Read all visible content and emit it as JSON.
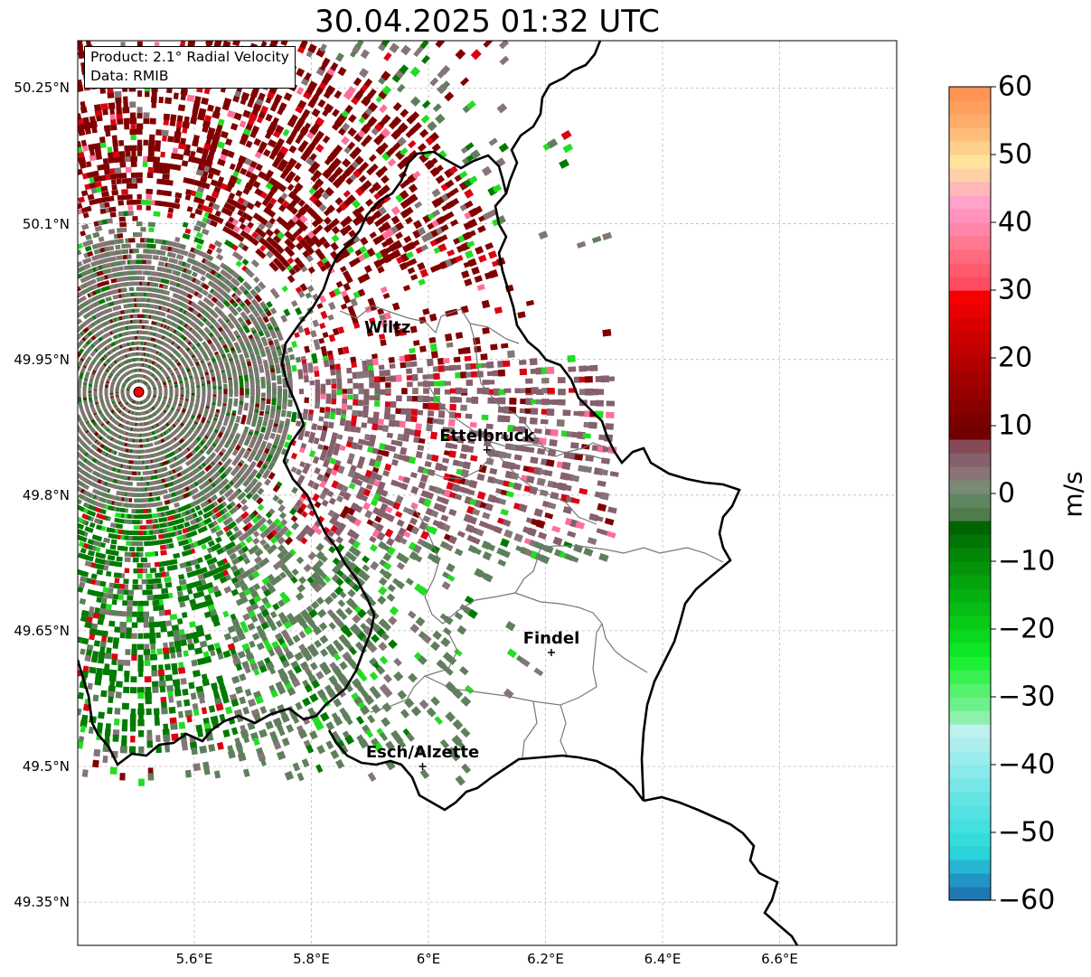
{
  "title": "30.04.2025 01:32 UTC",
  "info_box": {
    "product": "Product: 2.1° Radial Velocity",
    "data": "Data: RMIB"
  },
  "lat_labels": [
    {
      "value": 50.25,
      "text": "50.25°N"
    },
    {
      "value": 50.1,
      "text": "50.1°N"
    },
    {
      "value": 49.95,
      "text": "49.95°N"
    },
    {
      "value": 49.8,
      "text": "49.8°N"
    },
    {
      "value": 49.65,
      "text": "49.65°N"
    },
    {
      "value": 49.5,
      "text": "49.5°N"
    },
    {
      "value": 49.35,
      "text": "49.35°N"
    }
  ],
  "lon_labels": [
    {
      "value": 5.6,
      "text": "5.6°E"
    },
    {
      "value": 5.8,
      "text": "5.8°E"
    },
    {
      "value": 6.0,
      "text": "6°E"
    },
    {
      "value": 6.2,
      "text": "6.2°E"
    },
    {
      "value": 6.4,
      "text": "6.4°E"
    },
    {
      "value": 6.6,
      "text": "6.6°E"
    }
  ],
  "cities": [
    {
      "name": "Wiltz",
      "lon": 5.93,
      "lat": 49.97
    },
    {
      "name": "Ettelbruck",
      "lon": 6.1,
      "lat": 49.85
    },
    {
      "name": "Findel",
      "lon": 6.21,
      "lat": 49.626
    },
    {
      "name": "Esch/Alzette",
      "lon": 5.99,
      "lat": 49.5
    }
  ],
  "radar_site": {
    "lon": 5.505,
    "lat": 49.914,
    "color": "#ff0000"
  },
  "colorbar": {
    "unit": "m/s",
    "min": -60,
    "max": 60,
    "ticks": [
      {
        "value": 60,
        "text": "60"
      },
      {
        "value": 50,
        "text": "50"
      },
      {
        "value": 40,
        "text": "40"
      },
      {
        "value": 30,
        "text": "30"
      },
      {
        "value": 20,
        "text": "20"
      },
      {
        "value": 10,
        "text": "10"
      },
      {
        "value": 0,
        "text": "0"
      },
      {
        "value": -10,
        "text": "−10"
      },
      {
        "value": -20,
        "text": "−20"
      },
      {
        "value": -30,
        "text": "−30"
      },
      {
        "value": -40,
        "text": "−40"
      },
      {
        "value": -50,
        "text": "−50"
      },
      {
        "value": -60,
        "text": "−60"
      }
    ],
    "segments": [
      {
        "from": -60,
        "to": -58,
        "color": "#1f77b4"
      },
      {
        "from": -58,
        "to": -56,
        "color": "#2395c4"
      },
      {
        "from": -56,
        "to": -54,
        "color": "#26b5d2"
      },
      {
        "from": -54,
        "to": -52,
        "color": "#2ad2da"
      },
      {
        "from": -52,
        "to": -50,
        "color": "#35dcdc"
      },
      {
        "from": -50,
        "to": -48,
        "color": "#45dfdf"
      },
      {
        "from": -48,
        "to": -46,
        "color": "#55e2e2"
      },
      {
        "from": -46,
        "to": -44,
        "color": "#65e4e4"
      },
      {
        "from": -44,
        "to": -42,
        "color": "#78e7e7"
      },
      {
        "from": -42,
        "to": -40,
        "color": "#8ae9ea"
      },
      {
        "from": -40,
        "to": -38,
        "color": "#9aecec"
      },
      {
        "from": -38,
        "to": -36,
        "color": "#aeeeee"
      },
      {
        "from": -36,
        "to": -34,
        "color": "#bff1ef"
      },
      {
        "from": -34,
        "to": -32,
        "color": "#8ef0ad"
      },
      {
        "from": -32,
        "to": -30,
        "color": "#6cf089"
      },
      {
        "from": -30,
        "to": -28,
        "color": "#55f06e"
      },
      {
        "from": -28,
        "to": -26,
        "color": "#39f050"
      },
      {
        "from": -26,
        "to": -24,
        "color": "#1df035"
      },
      {
        "from": -24,
        "to": -22,
        "color": "#0de624"
      },
      {
        "from": -22,
        "to": -20,
        "color": "#0ad81e"
      },
      {
        "from": -20,
        "to": -18,
        "color": "#08cb19"
      },
      {
        "from": -18,
        "to": -16,
        "color": "#07bd15"
      },
      {
        "from": -16,
        "to": -14,
        "color": "#05b011"
      },
      {
        "from": -14,
        "to": -12,
        "color": "#04a20d"
      },
      {
        "from": -12,
        "to": -10,
        "color": "#03940a"
      },
      {
        "from": -10,
        "to": -8,
        "color": "#028607"
      },
      {
        "from": -8,
        "to": -6,
        "color": "#017505"
      },
      {
        "from": -6,
        "to": -4,
        "color": "#006400"
      },
      {
        "from": -4,
        "to": -2,
        "color": "#4e7c4c"
      },
      {
        "from": -2,
        "to": 0,
        "color": "#5f8660"
      },
      {
        "from": 0,
        "to": 2,
        "color": "#7a8a74"
      },
      {
        "from": 2,
        "to": 4,
        "color": "#8a7475"
      },
      {
        "from": 4,
        "to": 6,
        "color": "#86606c"
      },
      {
        "from": 6,
        "to": 8,
        "color": "#854a56"
      },
      {
        "from": 8,
        "to": 10,
        "color": "#720000"
      },
      {
        "from": 10,
        "to": 12,
        "color": "#7d0000"
      },
      {
        "from": 12,
        "to": 14,
        "color": "#890000"
      },
      {
        "from": 14,
        "to": 16,
        "color": "#960000"
      },
      {
        "from": 16,
        "to": 18,
        "color": "#a30000"
      },
      {
        "from": 18,
        "to": 20,
        "color": "#b10000"
      },
      {
        "from": 20,
        "to": 22,
        "color": "#bf0000"
      },
      {
        "from": 22,
        "to": 24,
        "color": "#cd0000"
      },
      {
        "from": 24,
        "to": 26,
        "color": "#db0000"
      },
      {
        "from": 26,
        "to": 28,
        "color": "#e90000"
      },
      {
        "from": 28,
        "to": 30,
        "color": "#f60000"
      },
      {
        "from": 30,
        "to": 32,
        "color": "#ff4b60"
      },
      {
        "from": 32,
        "to": 34,
        "color": "#ff5a6e"
      },
      {
        "from": 34,
        "to": 36,
        "color": "#ff6a7e"
      },
      {
        "from": 36,
        "to": 38,
        "color": "#ff7990"
      },
      {
        "from": 38,
        "to": 40,
        "color": "#ff86a8"
      },
      {
        "from": 40,
        "to": 42,
        "color": "#ff93be"
      },
      {
        "from": 42,
        "to": 44,
        "color": "#ffa2cc"
      },
      {
        "from": 44,
        "to": 46,
        "color": "#ffb7b7"
      },
      {
        "from": 46,
        "to": 48,
        "color": "#ffd1a8"
      },
      {
        "from": 48,
        "to": 50,
        "color": "#ffe39b"
      },
      {
        "from": 50,
        "to": 52,
        "color": "#ffd08a"
      },
      {
        "from": 52,
        "to": 54,
        "color": "#ffbd79"
      },
      {
        "from": 54,
        "to": 56,
        "color": "#ffad6b"
      },
      {
        "from": 56,
        "to": 58,
        "color": "#ff9f5e"
      },
      {
        "from": 58,
        "to": 60,
        "color": "#ff9352"
      }
    ]
  },
  "colors": {
    "receding_dark": "#800000",
    "receding_brown": "#86606c",
    "near_zero_gray": "#857576",
    "near_zero_green": "#5f7f5c",
    "approaching_green": "#007a00",
    "bright_green": "#22dd22",
    "red": "#dd0011",
    "pink": "#ff6e9a",
    "cyan": "#55d9d9"
  }
}
